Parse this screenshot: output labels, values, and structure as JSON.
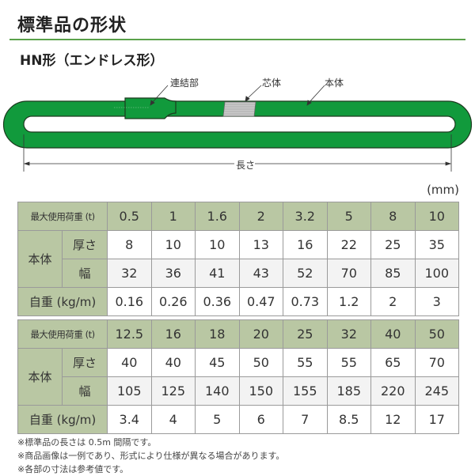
{
  "title": "標準品の形状",
  "subtitle": "HN形（エンドレス形）",
  "diagram": {
    "labels": {
      "joint": "連結部",
      "core": "芯体",
      "body": "本体",
      "length": "長さ"
    },
    "colors": {
      "sling": "#119a3c",
      "outline": "#1d3a1f",
      "core": "#c8c8c8"
    }
  },
  "unit": "(mm)",
  "row_labels": {
    "load": "最大使用荷重 (t)",
    "body": "本体",
    "thickness": "厚さ",
    "width": "幅",
    "weight": "自重 (kg/m)"
  },
  "tables": [
    {
      "load": [
        "0.5",
        "1",
        "1.6",
        "2",
        "3.2",
        "5",
        "8",
        "10"
      ],
      "thickness": [
        "8",
        "10",
        "10",
        "13",
        "16",
        "22",
        "25",
        "35"
      ],
      "width": [
        "32",
        "36",
        "41",
        "43",
        "52",
        "70",
        "85",
        "100"
      ],
      "weight": [
        "0.16",
        "0.26",
        "0.36",
        "0.47",
        "0.73",
        "1.2",
        "2",
        "3"
      ]
    },
    {
      "load": [
        "12.5",
        "16",
        "18",
        "20",
        "25",
        "32",
        "40",
        "50"
      ],
      "thickness": [
        "40",
        "40",
        "45",
        "50",
        "55",
        "55",
        "65",
        "70"
      ],
      "width": [
        "105",
        "125",
        "140",
        "150",
        "155",
        "185",
        "220",
        "245"
      ],
      "weight": [
        "3.4",
        "4",
        "5",
        "6",
        "7",
        "8.5",
        "12",
        "17"
      ]
    }
  ],
  "notes": [
    "※標準品の長さは 0.5m 間隔です。",
    "※商品画像は一例であり、形式により仕様が異なる場合があります。",
    "※各部の寸法は参考値です。"
  ],
  "colors": {
    "header_bg": "#b9c7a3",
    "rule": "#5aa14a",
    "alt_row": "#f3f3f3"
  }
}
